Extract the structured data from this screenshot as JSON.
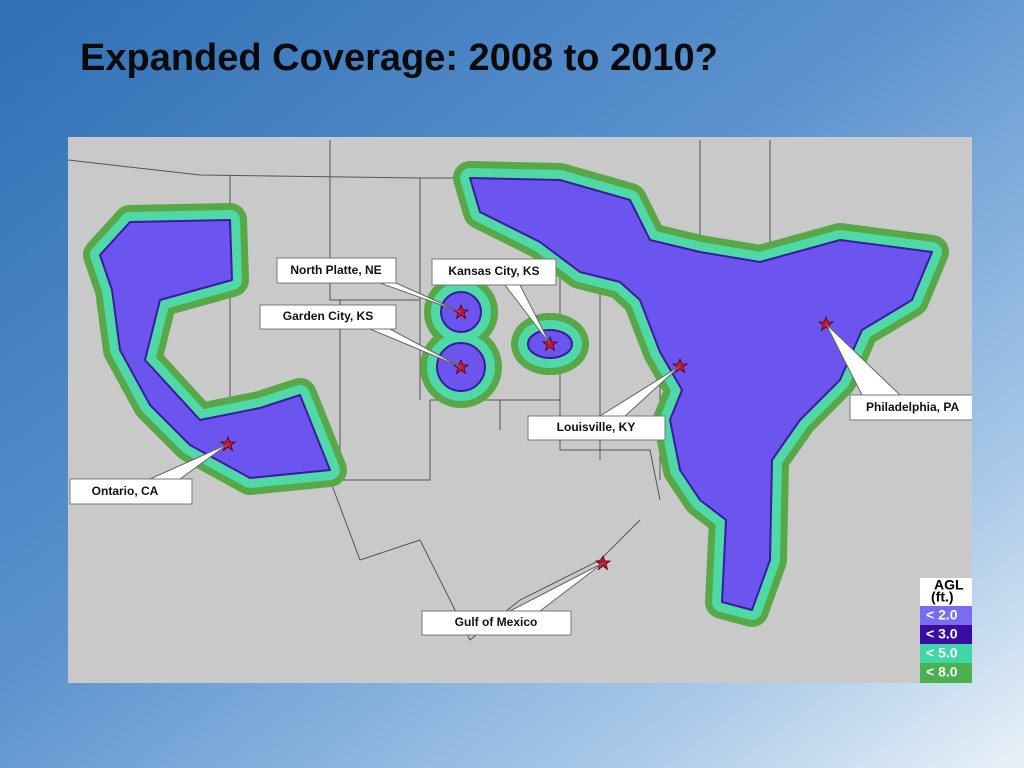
{
  "title": "Expanded Coverage: 2008 to 2010?",
  "map": {
    "callouts": [
      {
        "label": "North Platte, NE"
      },
      {
        "label": "Kansas City, KS"
      },
      {
        "label": "Garden City, KS"
      },
      {
        "label": "Louisville, KY"
      },
      {
        "label": "Philadelphia, PA"
      },
      {
        "label": "Ontario, CA"
      },
      {
        "label": "Gulf of Mexico"
      }
    ],
    "legend": {
      "title": [
        "AGL",
        "(ft.)"
      ],
      "entries": [
        "< 2.0",
        "< 3.0",
        "< 5.0",
        "< 8.0"
      ]
    }
  }
}
